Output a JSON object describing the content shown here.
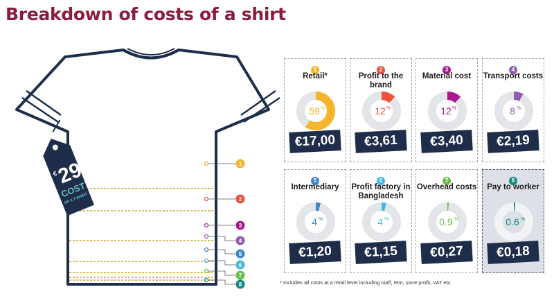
{
  "title": "Breakdown of costs of a shirt",
  "price_tag": {
    "amount": "29",
    "currency": "€",
    "label": "COST",
    "sublabel": "OF A T-SHIRT"
  },
  "footnote": "* Includes all costs at a retail level including staff, rent, store profit, VAT etc.",
  "chart_data": {
    "type": "pie",
    "title": "Breakdown of costs of a shirt",
    "total": "€29",
    "items": [
      {
        "num": "1",
        "label": "Retail*",
        "percent": 59,
        "percent_label": "59",
        "amount": "€17,00",
        "color": "#f4b52d"
      },
      {
        "num": "2",
        "label": "Profit to the brand",
        "percent": 12,
        "percent_label": "12",
        "amount": "€3,61",
        "color": "#ee4f3a"
      },
      {
        "num": "3",
        "label": "Material cost",
        "percent": 12,
        "percent_label": "12",
        "amount": "€3,40",
        "color": "#a81b8d"
      },
      {
        "num": "4",
        "label": "Transport costs",
        "percent": 8,
        "percent_label": "8",
        "amount": "€2,19",
        "color": "#8f5db1"
      },
      {
        "num": "5",
        "label": "Intermediary",
        "percent": 4,
        "percent_label": "4",
        "amount": "€1,20",
        "color": "#3b86c6"
      },
      {
        "num": "6",
        "label": "Profit factory in Bangladesh",
        "percent": 4,
        "percent_label": "4",
        "amount": "€1,15",
        "color": "#47b6e3"
      },
      {
        "num": "7",
        "label": "Overhead costs",
        "percent": 0.9,
        "percent_label": "0.9",
        "amount": "€0,27",
        "color": "#6abf4b"
      },
      {
        "num": "8",
        "label": "Pay to worker",
        "percent": 0.6,
        "percent_label": "0.6",
        "amount": "€0,18",
        "color": "#138a7e"
      }
    ]
  }
}
